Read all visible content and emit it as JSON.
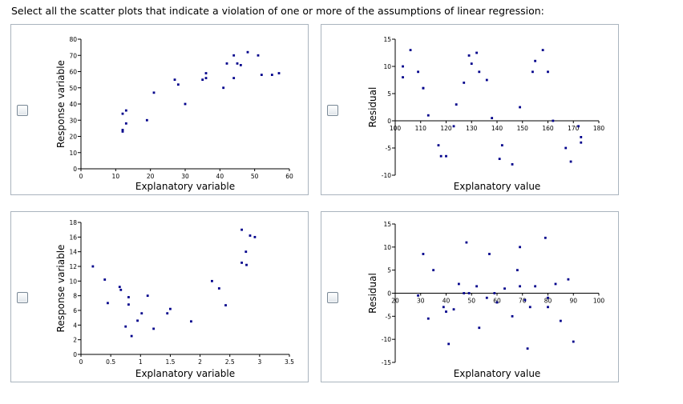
{
  "question": "Select all the scatter plots that indicate a violation of one or more of the assumptions of linear regression:",
  "options": [
    {
      "checked": false
    },
    {
      "checked": false
    },
    {
      "checked": false
    },
    {
      "checked": false
    }
  ],
  "chart_data": [
    {
      "type": "scatter",
      "xlabel": "Explanatory variable",
      "ylabel": "Response variable",
      "xlim": [
        0,
        60
      ],
      "ylim": [
        0,
        80
      ],
      "xticks": [
        0,
        10,
        20,
        30,
        40,
        50,
        60
      ],
      "yticks": [
        0,
        10,
        20,
        30,
        40,
        50,
        60,
        70,
        80
      ],
      "point_color": "#00008b",
      "points": [
        [
          12,
          24
        ],
        [
          12,
          23
        ],
        [
          12,
          34
        ],
        [
          13,
          36
        ],
        [
          13,
          28
        ],
        [
          19,
          30
        ],
        [
          21,
          47
        ],
        [
          27,
          55
        ],
        [
          28,
          52
        ],
        [
          30,
          40
        ],
        [
          35,
          55
        ],
        [
          36,
          59
        ],
        [
          36,
          56
        ],
        [
          41,
          50
        ],
        [
          42,
          65
        ],
        [
          44,
          70
        ],
        [
          44,
          56
        ],
        [
          45,
          65
        ],
        [
          46,
          64
        ],
        [
          48,
          72
        ],
        [
          51,
          70
        ],
        [
          52,
          58
        ],
        [
          55,
          58
        ],
        [
          57,
          59
        ]
      ]
    },
    {
      "type": "scatter",
      "xlabel": "Explanatory value",
      "ylabel": "Residual",
      "xlim": [
        100,
        180
      ],
      "ylim": [
        -10,
        15
      ],
      "xticks": [
        100,
        110,
        120,
        130,
        140,
        150,
        160,
        170,
        180
      ],
      "yticks": [
        -10,
        -5,
        0,
        5,
        10,
        15
      ],
      "point_color": "#00008b",
      "points": [
        [
          103,
          10
        ],
        [
          103,
          8
        ],
        [
          106,
          13
        ],
        [
          109,
          9
        ],
        [
          111,
          6
        ],
        [
          111,
          6
        ],
        [
          113,
          1
        ],
        [
          117,
          -4.5
        ],
        [
          118,
          -6.5
        ],
        [
          120,
          -6.5
        ],
        [
          123,
          -1
        ],
        [
          124,
          3
        ],
        [
          127,
          7
        ],
        [
          129,
          12
        ],
        [
          130,
          10.5
        ],
        [
          132,
          12.5
        ],
        [
          133,
          9
        ],
        [
          136,
          7.5
        ],
        [
          138,
          0.5
        ],
        [
          141,
          -7
        ],
        [
          142,
          -4.5
        ],
        [
          146,
          -8
        ],
        [
          149,
          2.5
        ],
        [
          154,
          9
        ],
        [
          155,
          11
        ],
        [
          158,
          13
        ],
        [
          160,
          9
        ],
        [
          162,
          0
        ],
        [
          167,
          -5
        ],
        [
          169,
          -7.5
        ],
        [
          172,
          -1
        ],
        [
          173,
          -3
        ],
        [
          173,
          -4
        ]
      ]
    },
    {
      "type": "scatter",
      "xlabel": "Explanatory variable",
      "ylabel": "Response variable",
      "xlim": [
        0,
        3.5
      ],
      "ylim": [
        0,
        18
      ],
      "xticks": [
        0,
        0.5,
        1,
        1.5,
        2,
        2.5,
        3,
        3.5
      ],
      "yticks": [
        0,
        2,
        4,
        6,
        8,
        10,
        12,
        14,
        16,
        18
      ],
      "point_color": "#00008b",
      "points": [
        [
          0.2,
          12
        ],
        [
          0.4,
          10.2
        ],
        [
          0.45,
          7
        ],
        [
          0.65,
          9.2
        ],
        [
          0.67,
          8.8
        ],
        [
          0.75,
          3.8
        ],
        [
          0.8,
          7.8
        ],
        [
          0.8,
          6.8
        ],
        [
          0.85,
          2.5
        ],
        [
          0.95,
          4.6
        ],
        [
          1.02,
          5.6
        ],
        [
          1.12,
          8
        ],
        [
          1.22,
          3.5
        ],
        [
          1.45,
          5.6
        ],
        [
          1.5,
          6.2
        ],
        [
          1.85,
          4.5
        ],
        [
          2.2,
          10
        ],
        [
          2.32,
          9
        ],
        [
          2.43,
          6.7
        ],
        [
          2.7,
          17
        ],
        [
          2.7,
          12.5
        ],
        [
          2.77,
          14
        ],
        [
          2.78,
          12.2
        ],
        [
          2.84,
          16.2
        ],
        [
          2.92,
          16
        ]
      ]
    },
    {
      "type": "scatter",
      "xlabel": "Explanatory value",
      "ylabel": "Residual",
      "xlim": [
        20,
        100
      ],
      "ylim": [
        -15,
        15
      ],
      "xticks": [
        20,
        30,
        40,
        50,
        60,
        70,
        80,
        90,
        100
      ],
      "yticks": [
        -15,
        -10,
        -5,
        0,
        5,
        10,
        15
      ],
      "point_color": "#00008b",
      "points": [
        [
          29,
          -0.5
        ],
        [
          31,
          8.5
        ],
        [
          33,
          -5.5
        ],
        [
          35,
          5
        ],
        [
          39,
          -3
        ],
        [
          40,
          -4
        ],
        [
          41,
          -11
        ],
        [
          43,
          -3.5
        ],
        [
          45,
          2
        ],
        [
          47,
          0
        ],
        [
          48,
          11
        ],
        [
          49,
          0
        ],
        [
          52,
          1.5
        ],
        [
          53,
          -7.5
        ],
        [
          56,
          -1
        ],
        [
          57,
          8.5
        ],
        [
          59,
          0
        ],
        [
          60,
          -2
        ],
        [
          63,
          1
        ],
        [
          66,
          -5
        ],
        [
          68,
          5
        ],
        [
          69,
          1.5
        ],
        [
          69,
          10
        ],
        [
          71,
          -1.5
        ],
        [
          72,
          -12
        ],
        [
          73,
          -3
        ],
        [
          75,
          1.5
        ],
        [
          79,
          12
        ],
        [
          80,
          -1
        ],
        [
          80,
          -3
        ],
        [
          83,
          2
        ],
        [
          85,
          -6
        ],
        [
          88,
          3
        ],
        [
          90,
          -10.5
        ]
      ]
    }
  ]
}
